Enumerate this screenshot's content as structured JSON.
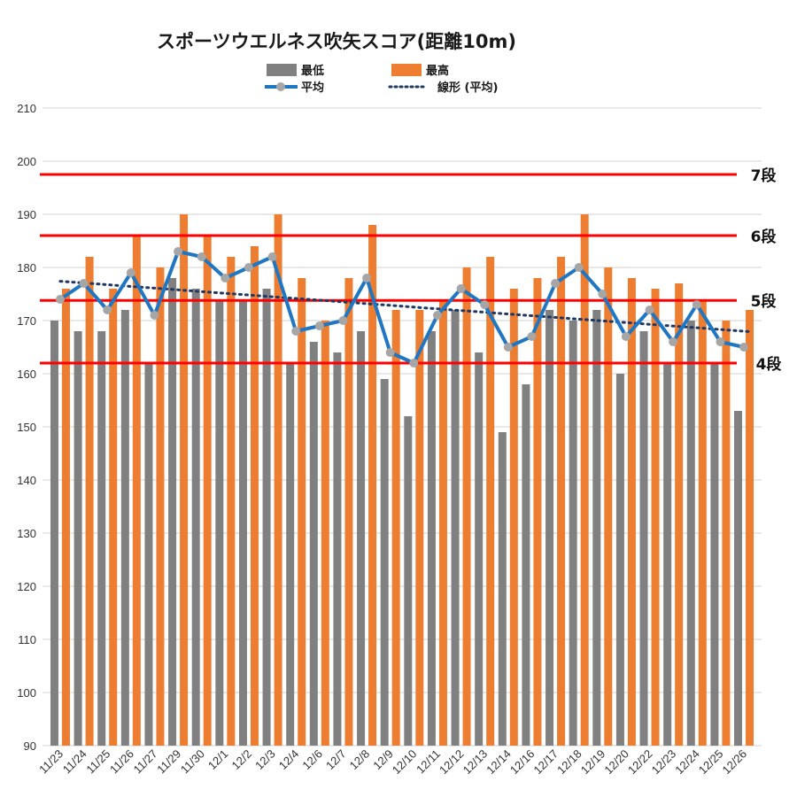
{
  "colors": {
    "min_bar": "#808080",
    "max_bar": "#ed7d31",
    "avg_line": "#1f77c4",
    "avg_marker": "#a6a6a6",
    "trend_line": "#1f3864",
    "rank_line": "#ff0000",
    "grid": "#d9d9d9"
  },
  "chart_data": {
    "type": "bar",
    "title": "スポーツウエルネス吹矢スコア(距離10m)",
    "xlabel": "",
    "ylabel": "",
    "ylim": [
      90,
      210
    ],
    "yticks": [
      90,
      100,
      110,
      120,
      130,
      140,
      150,
      160,
      170,
      180,
      190,
      200,
      210
    ],
    "grid": true,
    "legend_position": "top",
    "categories": [
      "11/23",
      "11/24",
      "11/25",
      "11/26",
      "11/27",
      "11/29",
      "11/30",
      "12/1",
      "12/2",
      "12/3",
      "12/4",
      "12/6",
      "12/7",
      "12/8",
      "12/9",
      "12/10",
      "12/11",
      "12/12",
      "12/13",
      "12/14",
      "12/16",
      "12/17",
      "12/18",
      "12/19",
      "12/20",
      "12/22",
      "12/23",
      "12/24",
      "12/25",
      "12/26"
    ],
    "series": [
      {
        "name": "最低",
        "kind": "bar",
        "values": [
          170,
          168,
          168,
          172,
          162,
          178,
          176,
          174,
          174,
          176,
          162,
          166,
          164,
          168,
          159,
          152,
          168,
          172,
          164,
          149,
          158,
          172,
          170,
          172,
          160,
          168,
          162,
          170,
          162,
          153
        ]
      },
      {
        "name": "最高",
        "kind": "bar",
        "values": [
          176,
          182,
          176,
          186,
          180,
          190,
          186,
          182,
          184,
          190,
          178,
          170,
          178,
          188,
          172,
          172,
          174,
          180,
          182,
          176,
          178,
          182,
          190,
          180,
          178,
          176,
          177,
          174,
          170,
          172
        ]
      },
      {
        "name": "平均",
        "kind": "line",
        "values": [
          174,
          177,
          172,
          179,
          171,
          183,
          182,
          178,
          180,
          182,
          168,
          169,
          170,
          178,
          164,
          162,
          171,
          176,
          173,
          165,
          167,
          177,
          180,
          175,
          167,
          172,
          166,
          173,
          166,
          165
        ]
      },
      {
        "name": "線形 (平均)",
        "kind": "trendline",
        "start": 177.4,
        "end": 167.9
      }
    ],
    "reference_lines": [
      {
        "label": "7段",
        "value": 197.5
      },
      {
        "label": "6段",
        "value": 186
      },
      {
        "label": "5段",
        "value": 173.8
      },
      {
        "label": "4段",
        "value": 162
      }
    ]
  }
}
